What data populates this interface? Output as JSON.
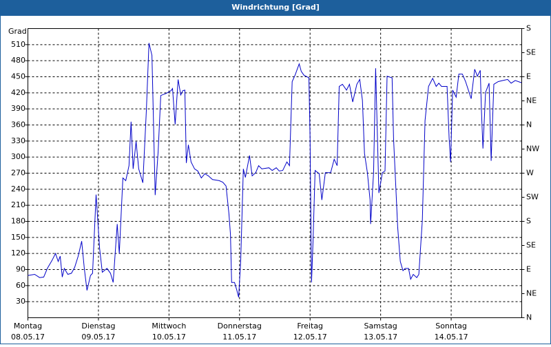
{
  "chart_data": {
    "type": "line",
    "title": "Windrichtung [Grad]",
    "y_label": "Grad",
    "xlim": [
      0,
      168
    ],
    "xticks": [
      {
        "value": 0,
        "label": "Montag"
      },
      {
        "value": 24,
        "label": "Dienstag"
      },
      {
        "value": 48,
        "label": "Mittwoch"
      },
      {
        "value": 72,
        "label": "Donnerstag"
      },
      {
        "value": 96,
        "label": "Freitag"
      },
      {
        "value": 120,
        "label": "Samstag"
      },
      {
        "value": 144,
        "label": "Sonntag"
      }
    ],
    "xtick_dates": [
      "08.05.17",
      "09.05.17",
      "10.05.17",
      "11.05.17",
      "12.05.17",
      "13.05.17",
      "14.05.17"
    ],
    "ylim": [
      0,
      540
    ],
    "yticks": [
      30,
      60,
      90,
      120,
      150,
      180,
      210,
      240,
      270,
      300,
      330,
      360,
      390,
      420,
      450,
      480,
      510
    ],
    "y2lim": [
      0,
      540
    ],
    "y2ticks": [
      {
        "value": 0,
        "label": "N"
      },
      {
        "value": 45,
        "label": "NE"
      },
      {
        "value": 90,
        "label": "E"
      },
      {
        "value": 135,
        "label": "SE"
      },
      {
        "value": 180,
        "label": "S"
      },
      {
        "value": 225,
        "label": "SW"
      },
      {
        "value": 270,
        "label": "W"
      },
      {
        "value": 315,
        "label": "NW"
      },
      {
        "value": 360,
        "label": "N"
      },
      {
        "value": 405,
        "label": "NE"
      },
      {
        "value": 450,
        "label": "E"
      },
      {
        "value": 495,
        "label": "SE"
      },
      {
        "value": 540,
        "label": "S"
      }
    ],
    "grid": true,
    "series": [
      {
        "color": "#0000c8",
        "x": [
          0,
          2.3,
          4.0,
          5.4,
          6.6,
          8.2,
          9.4,
          10.3,
          11.0,
          11.7,
          12.4,
          13.6,
          14.8,
          15.9,
          17.1,
          18.3,
          19.2,
          20.1,
          21.3,
          22.0,
          23.2,
          24.4,
          25.3,
          26.9,
          28.1,
          29.0,
          30.4,
          31.1,
          32.3,
          33.3,
          34.4,
          35.1,
          35.8,
          36.8,
          37.7,
          39.1,
          40.3,
          41.2,
          42.2,
          43.3,
          44.3,
          45.2,
          47.1,
          48.7,
          49.2,
          50.1,
          51.1,
          52.0,
          52.7,
          53.4,
          53.9,
          54.6,
          55.5,
          56.7,
          57.8,
          59.0,
          60.2,
          61.4,
          62.8,
          65.1,
          66.3,
          67.4,
          68.4,
          68.9,
          69.3,
          70.3,
          71.0,
          71.7,
          72.4,
          73.3,
          74.0,
          75.4,
          76.3,
          77.5,
          78.5,
          79.6,
          82.0,
          83.1,
          84.5,
          85.5,
          86.7,
          88.1,
          89.0,
          89.9,
          90.9,
          92.3,
          93.0,
          93.9,
          94.6,
          95.6,
          96.0,
          96.5,
          97.0,
          97.7,
          99.1,
          100.0,
          101.2,
          103.0,
          104.2,
          105.2,
          105.9,
          107.0,
          108.4,
          109.4,
          110.5,
          111.9,
          112.9,
          113.8,
          114.5,
          115.5,
          116.4,
          116.6,
          117.6,
          118.3,
          119.4,
          120.6,
          121.5,
          122.2,
          123.9,
          124.4,
          125.8,
          126.7,
          127.6,
          128.3,
          129.5,
          130.2,
          131.1,
          132.3,
          133.0,
          134.2,
          135.1,
          136.3,
          137.7,
          138.9,
          139.8,
          140.7,
          141.9,
          142.6,
          143.3,
          143.8,
          144.5,
          145.7,
          146.6,
          147.8,
          148.9,
          150.8,
          152.0,
          152.9,
          153.9,
          154.3,
          154.8,
          155.7,
          156.9,
          157.6,
          158.5,
          160.0,
          161.6,
          163.2,
          164.4,
          165.8,
          167.9
        ],
        "values": [
          79,
          81,
          75,
          76,
          92,
          107,
          120,
          105,
          115,
          76,
          92,
          81,
          83,
          94,
          115,
          143,
          92,
          51,
          79,
          83,
          230,
          130,
          85,
          92,
          83,
          66,
          175,
          120,
          261,
          256,
          284,
          366,
          278,
          329,
          278,
          252,
          387,
          513,
          490,
          229,
          310,
          415,
          419,
          424,
          428,
          361,
          445,
          416,
          424,
          425,
          289,
          323,
          291,
          278,
          274,
          261,
          269,
          265,
          258,
          256,
          253,
          246,
          194,
          156,
          66,
          66,
          53,
          38,
          107,
          278,
          262,
          303,
          265,
          271,
          284,
          278,
          280,
          275,
          280,
          274,
          275,
          291,
          284,
          441,
          453,
          474,
          460,
          453,
          451,
          448,
          335,
          66,
          143,
          275,
          269,
          220,
          271,
          271,
          296,
          284,
          432,
          436,
          425,
          436,
          403,
          436,
          445,
          406,
          307,
          271,
          220,
          175,
          271,
          466,
          233,
          271,
          274,
          451,
          448,
          335,
          169,
          105,
          88,
          92,
          92,
          72,
          81,
          75,
          81,
          182,
          368,
          432,
          447,
          432,
          438,
          432,
          432,
          432,
          335,
          291,
          425,
          412,
          455,
          455,
          441,
          409,
          464,
          451,
          462,
          387,
          316,
          421,
          438,
          293,
          436,
          441,
          443,
          445,
          438,
          443,
          439
        ]
      }
    ]
  }
}
